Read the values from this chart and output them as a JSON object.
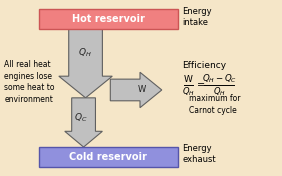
{
  "bg_color": "#f5e6c8",
  "hot_reservoir_color": "#f08080",
  "hot_reservoir_edge": "#cc5555",
  "cold_reservoir_color": "#9090dd",
  "cold_reservoir_edge": "#5555aa",
  "arrow_fill": "#c0c0c0",
  "arrow_edge": "#606060",
  "hot_text": "Hot reservoir",
  "cold_text": "Cold reservoir",
  "left_text": "All real heat\nengines lose\nsome heat to\nenvironment",
  "right_top_text": "Energy\nintake",
  "right_bot_text": "Energy\nexhaust",
  "efficiency_label": "Efficiency",
  "carnot_label": "maximum for\nCarnot cycle"
}
